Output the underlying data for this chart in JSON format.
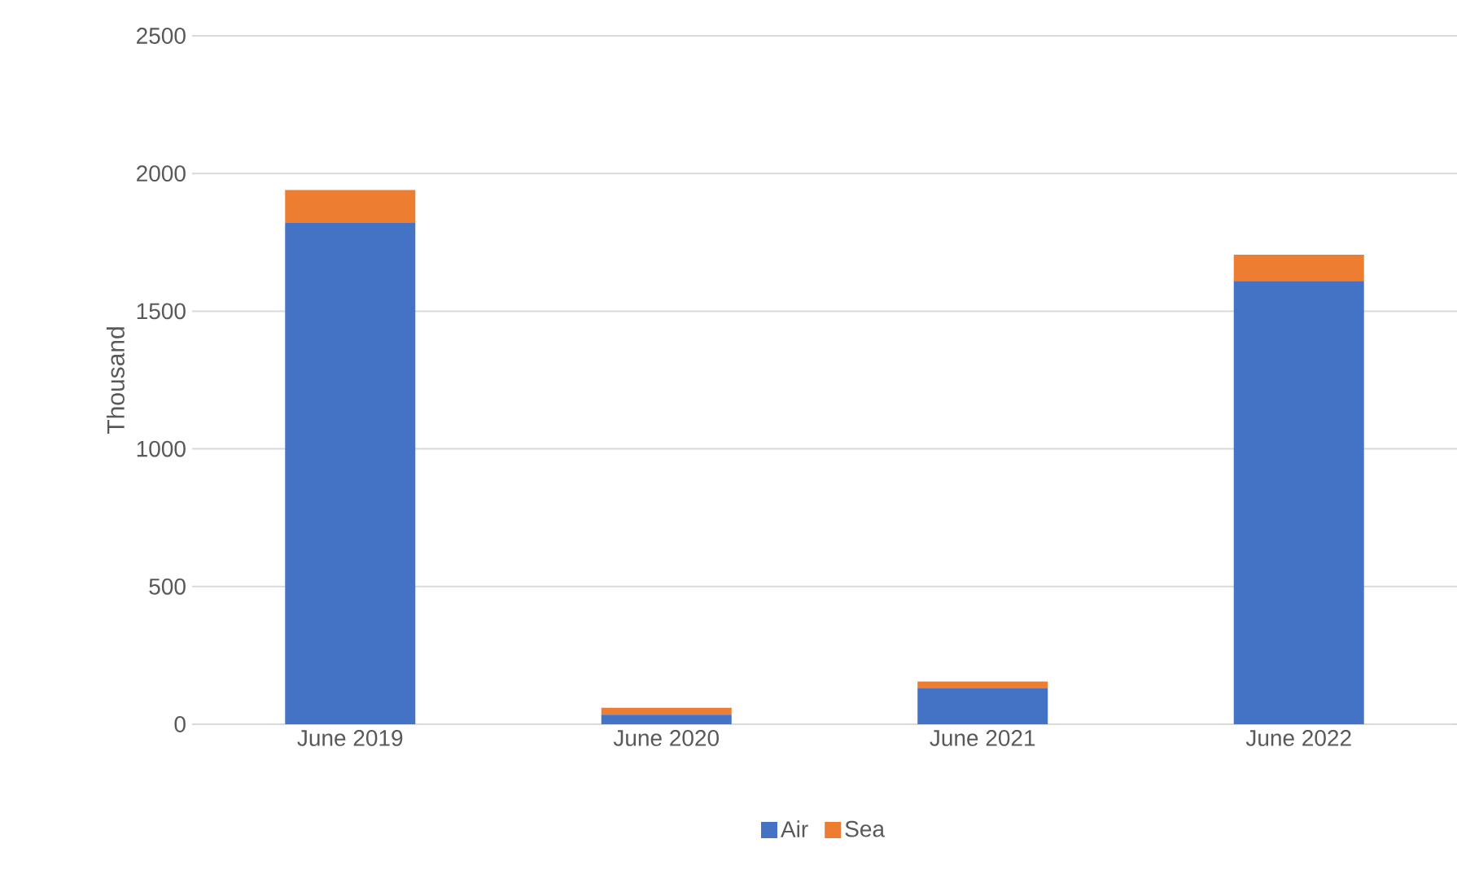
{
  "chart_data": {
    "type": "bar",
    "stacked": true,
    "ylabel": "Thousand",
    "categories": [
      "June 2019",
      "June 2020",
      "June 2021",
      "June 2022"
    ],
    "series": [
      {
        "name": "Air",
        "color": "#4472c4",
        "values": [
          1820,
          35,
          130,
          1610
        ]
      },
      {
        "name": "Sea",
        "color": "#ed7d31",
        "values": [
          120,
          25,
          25,
          95
        ]
      }
    ],
    "ylim": [
      0,
      2500
    ],
    "yticks": [
      0,
      500,
      1000,
      1500,
      2000,
      2500
    ],
    "grid": "y",
    "legend": "bottom"
  }
}
